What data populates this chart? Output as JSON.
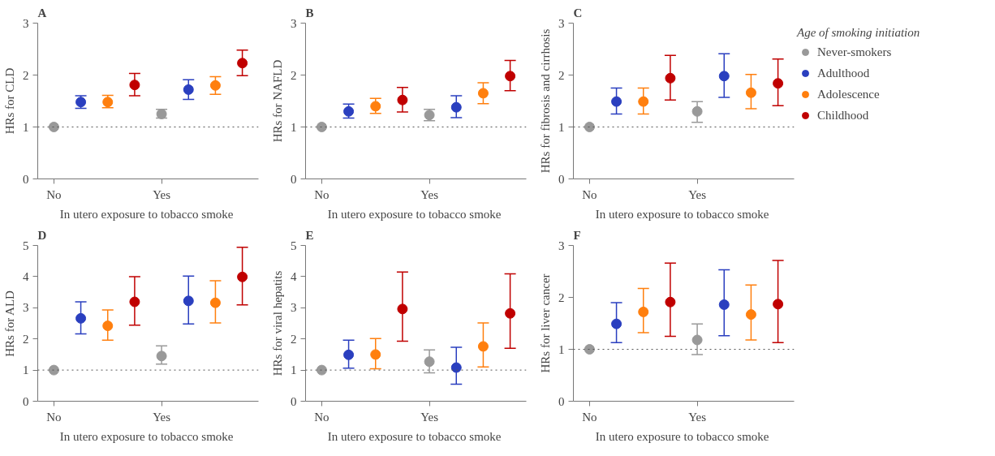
{
  "chart_data": [
    {
      "type": "scatter",
      "title": "A",
      "ylabel": "HRs for CLD",
      "xlabel": "In  utero exposure to tobacco smoke",
      "categories": [
        "No",
        null,
        null,
        null,
        "Yes",
        null,
        null,
        null
      ],
      "ylim": [
        0,
        3
      ],
      "yticks": [
        0,
        1,
        2,
        3
      ],
      "marker": "circle",
      "grid": false,
      "legend": false,
      "ref_lines": [
        {
          "axis": "y",
          "value": 1,
          "line_style": "dotted",
          "color": "#555555"
        }
      ],
      "series": [
        {
          "color": "#999999",
          "values": [
            1.0,
            null,
            null,
            null,
            1.25,
            null,
            null,
            null
          ],
          "errors": [
            null,
            null,
            null,
            null,
            [
              1.17,
              1.34
            ],
            null,
            null,
            null
          ]
        },
        {
          "color": "#2a3fbf",
          "values": [
            null,
            1.48,
            null,
            null,
            null,
            1.72,
            null,
            null
          ],
          "errors": [
            null,
            [
              1.36,
              1.6
            ],
            null,
            null,
            null,
            [
              1.53,
              1.91
            ],
            null,
            null
          ]
        },
        {
          "color": "#ff7f0e",
          "values": [
            null,
            null,
            1.48,
            null,
            null,
            null,
            1.8,
            null
          ],
          "errors": [
            null,
            null,
            [
              1.37,
              1.61
            ],
            null,
            null,
            null,
            [
              1.63,
              1.97
            ],
            null
          ]
        },
        {
          "color": "#c00000",
          "values": [
            null,
            null,
            null,
            1.81,
            null,
            null,
            null,
            2.23
          ],
          "errors": [
            null,
            null,
            null,
            [
              1.6,
              2.03
            ],
            null,
            null,
            null,
            [
              1.99,
              2.48
            ]
          ]
        }
      ]
    },
    {
      "type": "scatter",
      "title": "B",
      "ylabel": "HRs for NAFLD",
      "xlabel": "In  utero exposure to tobacco smoke",
      "categories": [
        "No",
        null,
        null,
        null,
        "Yes",
        null,
        null,
        null
      ],
      "ylim": [
        0,
        3
      ],
      "yticks": [
        0,
        1,
        2,
        3
      ],
      "marker": "circle",
      "grid": false,
      "legend": false,
      "ref_lines": [
        {
          "axis": "y",
          "value": 1,
          "line_style": "dotted",
          "color": "#555555"
        }
      ],
      "series": [
        {
          "color": "#999999",
          "values": [
            1.0,
            null,
            null,
            null,
            1.23,
            null,
            null,
            null
          ],
          "errors": [
            null,
            null,
            null,
            null,
            [
              1.12,
              1.34
            ],
            null,
            null,
            null
          ]
        },
        {
          "color": "#2a3fbf",
          "values": [
            null,
            1.3,
            null,
            null,
            null,
            1.38,
            null,
            null
          ],
          "errors": [
            null,
            [
              1.17,
              1.44
            ],
            null,
            null,
            null,
            [
              1.18,
              1.6
            ],
            null,
            null
          ]
        },
        {
          "color": "#ff7f0e",
          "values": [
            null,
            null,
            1.4,
            null,
            null,
            null,
            1.65,
            null
          ],
          "errors": [
            null,
            null,
            [
              1.26,
              1.55
            ],
            null,
            null,
            null,
            [
              1.45,
              1.85
            ],
            null
          ]
        },
        {
          "color": "#c00000",
          "values": [
            null,
            null,
            null,
            1.52,
            null,
            null,
            null,
            1.98
          ],
          "errors": [
            null,
            null,
            null,
            [
              1.29,
              1.76
            ],
            null,
            null,
            null,
            [
              1.7,
              2.28
            ]
          ]
        }
      ]
    },
    {
      "type": "scatter",
      "title": "C",
      "ylabel": "HRs for fibrosis and cirrhosis",
      "xlabel": "In  utero exposure to tobacco smoke",
      "categories": [
        "No",
        null,
        null,
        null,
        "Yes",
        null,
        null,
        null
      ],
      "ylim": [
        0,
        3
      ],
      "yticks": [
        0,
        1,
        2,
        3
      ],
      "marker": "circle",
      "grid": false,
      "legend": "right",
      "legend_title": "Age of smoking initiation",
      "ref_lines": [
        {
          "axis": "y",
          "value": 1,
          "line_style": "dotted",
          "color": "#555555"
        }
      ],
      "series": [
        {
          "name": "Never-smokers",
          "color": "#999999",
          "values": [
            1.0,
            null,
            null,
            null,
            1.3,
            null,
            null,
            null
          ],
          "errors": [
            null,
            null,
            null,
            null,
            [
              1.09,
              1.49
            ],
            null,
            null,
            null
          ]
        },
        {
          "name": "Adulthood",
          "color": "#2a3fbf",
          "values": [
            null,
            1.49,
            null,
            null,
            null,
            1.98,
            null,
            null
          ],
          "errors": [
            null,
            [
              1.25,
              1.75
            ],
            null,
            null,
            null,
            [
              1.57,
              2.41
            ],
            null,
            null
          ]
        },
        {
          "name": "Adolescence",
          "color": "#ff7f0e",
          "values": [
            null,
            null,
            1.49,
            null,
            null,
            null,
            1.66,
            null
          ],
          "errors": [
            null,
            null,
            [
              1.25,
              1.75
            ],
            null,
            null,
            null,
            [
              1.35,
              2.01
            ],
            null
          ]
        },
        {
          "name": "Childhood",
          "color": "#c00000",
          "values": [
            null,
            null,
            null,
            1.94,
            null,
            null,
            null,
            1.84
          ],
          "errors": [
            null,
            null,
            null,
            [
              1.52,
              2.38
            ],
            null,
            null,
            null,
            [
              1.41,
              2.31
            ]
          ]
        }
      ]
    },
    {
      "type": "scatter",
      "title": "D",
      "ylabel": "HRs for ALD",
      "xlabel": "In  utero exposure to tobacco smoke",
      "categories": [
        "No",
        null,
        null,
        null,
        "Yes",
        null,
        null,
        null
      ],
      "ylim": [
        0,
        5
      ],
      "yticks": [
        0,
        1,
        2,
        3,
        4,
        5
      ],
      "marker": "circle",
      "grid": false,
      "legend": false,
      "ref_lines": [
        {
          "axis": "y",
          "value": 1,
          "line_style": "dotted",
          "color": "#555555"
        }
      ],
      "series": [
        {
          "color": "#999999",
          "values": [
            1.0,
            null,
            null,
            null,
            1.45,
            null,
            null,
            null
          ],
          "errors": [
            null,
            null,
            null,
            null,
            [
              1.19,
              1.78
            ],
            null,
            null,
            null
          ]
        },
        {
          "color": "#2a3fbf",
          "values": [
            null,
            2.66,
            null,
            null,
            null,
            3.22,
            null,
            null
          ],
          "errors": [
            null,
            [
              2.16,
              3.19
            ],
            null,
            null,
            null,
            [
              2.48,
              4.02
            ],
            null,
            null
          ]
        },
        {
          "color": "#ff7f0e",
          "values": [
            null,
            null,
            2.42,
            null,
            null,
            null,
            3.16,
            null
          ],
          "errors": [
            null,
            null,
            [
              1.96,
              2.93
            ],
            null,
            null,
            null,
            [
              2.51,
              3.87
            ],
            null
          ]
        },
        {
          "color": "#c00000",
          "values": [
            null,
            null,
            null,
            3.19,
            null,
            null,
            null,
            3.99
          ],
          "errors": [
            null,
            null,
            null,
            [
              2.44,
              4.0
            ],
            null,
            null,
            null,
            [
              3.09,
              4.94
            ]
          ]
        }
      ]
    },
    {
      "type": "scatter",
      "title": "E",
      "ylabel": "HRs for viral hepatits",
      "xlabel": "In  utero exposure to tobacco smoke",
      "categories": [
        "No",
        null,
        null,
        null,
        "Yes",
        null,
        null,
        null
      ],
      "ylim": [
        0,
        5
      ],
      "yticks": [
        0,
        1,
        2,
        3,
        4,
        5
      ],
      "marker": "circle",
      "grid": false,
      "legend": false,
      "ref_lines": [
        {
          "axis": "y",
          "value": 1,
          "line_style": "dotted",
          "color": "#555555"
        }
      ],
      "series": [
        {
          "color": "#999999",
          "values": [
            1.0,
            null,
            null,
            null,
            1.27,
            null,
            null,
            null
          ],
          "errors": [
            null,
            null,
            null,
            null,
            [
              0.91,
              1.65
            ],
            null,
            null,
            null
          ]
        },
        {
          "color": "#2a3fbf",
          "values": [
            null,
            1.49,
            null,
            null,
            null,
            1.08,
            null,
            null
          ],
          "errors": [
            null,
            [
              1.06,
              1.96
            ],
            null,
            null,
            null,
            [
              0.55,
              1.73
            ],
            null,
            null
          ]
        },
        {
          "color": "#ff7f0e",
          "values": [
            null,
            null,
            1.5,
            null,
            null,
            null,
            1.76,
            null
          ],
          "errors": [
            null,
            null,
            [
              1.04,
              2.01
            ],
            null,
            null,
            null,
            [
              1.1,
              2.51
            ],
            null
          ]
        },
        {
          "color": "#c00000",
          "values": [
            null,
            null,
            null,
            2.96,
            null,
            null,
            null,
            2.82
          ],
          "errors": [
            null,
            null,
            null,
            [
              1.93,
              4.15
            ],
            null,
            null,
            null,
            [
              1.7,
              4.09
            ]
          ]
        }
      ]
    },
    {
      "type": "scatter",
      "title": "F",
      "ylabel": "HRs for liver cancer",
      "xlabel": "In  utero exposure to tobacco smoke",
      "categories": [
        "No",
        null,
        null,
        null,
        "Yes",
        null,
        null,
        null
      ],
      "ylim": [
        0,
        3
      ],
      "yticks": [
        0,
        1,
        2,
        3
      ],
      "marker": "circle",
      "grid": false,
      "legend": false,
      "ref_lines": [
        {
          "axis": "y",
          "value": 1,
          "line_style": "dotted",
          "color": "#555555"
        }
      ],
      "series": [
        {
          "color": "#999999",
          "values": [
            1.0,
            null,
            null,
            null,
            1.18,
            null,
            null,
            null
          ],
          "errors": [
            null,
            null,
            null,
            null,
            [
              0.9,
              1.49
            ],
            null,
            null,
            null
          ]
        },
        {
          "color": "#2a3fbf",
          "values": [
            null,
            1.49,
            null,
            null,
            null,
            1.86,
            null,
            null
          ],
          "errors": [
            null,
            [
              1.13,
              1.9
            ],
            null,
            null,
            null,
            [
              1.26,
              2.53
            ],
            null,
            null
          ]
        },
        {
          "color": "#ff7f0e",
          "values": [
            null,
            null,
            1.72,
            null,
            null,
            null,
            1.67,
            null
          ],
          "errors": [
            null,
            null,
            [
              1.32,
              2.17
            ],
            null,
            null,
            null,
            [
              1.18,
              2.24
            ],
            null
          ]
        },
        {
          "color": "#c00000",
          "values": [
            null,
            null,
            null,
            1.91,
            null,
            null,
            null,
            1.87
          ],
          "errors": [
            null,
            null,
            null,
            [
              1.25,
              2.66
            ],
            null,
            null,
            null,
            [
              1.13,
              2.71
            ]
          ]
        }
      ]
    }
  ]
}
